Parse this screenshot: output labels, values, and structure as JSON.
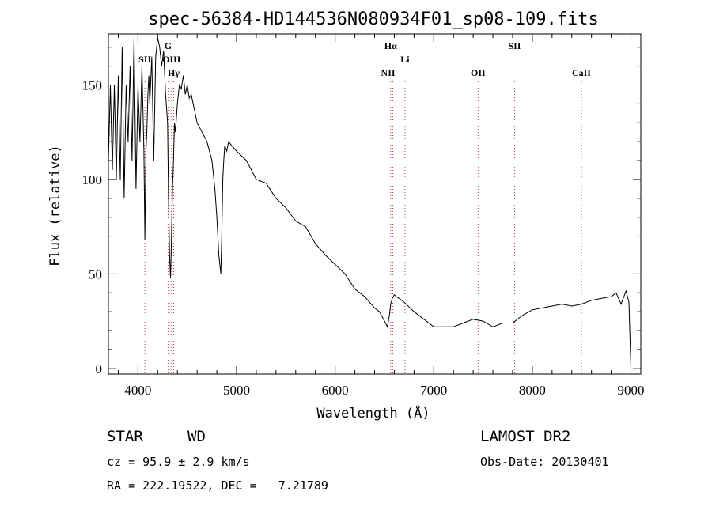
{
  "chart_data": {
    "type": "line",
    "title": "spec-56384-HD144536N080934F01_sp08-109.fits",
    "xlabel": "Wavelength (Å)",
    "ylabel": "Flux (relative)",
    "xlim": [
      3700,
      9100
    ],
    "ylim": [
      -3,
      177
    ],
    "xticks": [
      4000,
      5000,
      6000,
      7000,
      8000,
      9000
    ],
    "yticks": [
      0,
      50,
      100,
      150
    ],
    "grid": false,
    "series": [
      {
        "x": [
          3700,
          3720,
          3740,
          3760,
          3780,
          3800,
          3820,
          3840,
          3860,
          3880,
          3900,
          3920,
          3940,
          3960,
          3980,
          4000,
          4020,
          4040,
          4060,
          4070,
          4080,
          4090,
          4100,
          4110,
          4120,
          4140,
          4160,
          4180,
          4200,
          4220,
          4240,
          4260,
          4280,
          4300,
          4310,
          4320,
          4330,
          4340,
          4350,
          4360,
          4370,
          4380,
          4400,
          4420,
          4440,
          4460,
          4480,
          4500,
          4520,
          4540,
          4560,
          4580,
          4600,
          4650,
          4700,
          4750,
          4780,
          4800,
          4820,
          4840,
          4850,
          4860,
          4870,
          4880,
          4900,
          4920,
          4950,
          5000,
          5100,
          5200,
          5300,
          5400,
          5500,
          5600,
          5700,
          5800,
          5900,
          6000,
          6100,
          6200,
          6300,
          6400,
          6450,
          6500,
          6530,
          6550,
          6563,
          6580,
          6600,
          6620,
          6650,
          6700,
          6800,
          6900,
          7000,
          7100,
          7200,
          7300,
          7400,
          7500,
          7600,
          7700,
          7800,
          7900,
          8000,
          8100,
          8200,
          8300,
          8400,
          8500,
          8600,
          8700,
          8800,
          8850,
          8900,
          8950,
          8980,
          9000
        ],
        "y": [
          110,
          150,
          105,
          150,
          100,
          155,
          100,
          170,
          90,
          150,
          120,
          160,
          110,
          175,
          95,
          150,
          120,
          160,
          115,
          68,
          115,
          125,
          145,
          155,
          140,
          165,
          110,
          165,
          175,
          170,
          160,
          168,
          145,
          130,
          90,
          60,
          48,
          70,
          95,
          110,
          130,
          125,
          140,
          150,
          148,
          155,
          145,
          150,
          143,
          145,
          140,
          135,
          130,
          125,
          120,
          110,
          95,
          80,
          60,
          50,
          70,
          100,
          110,
          118,
          115,
          120,
          118,
          115,
          110,
          100,
          98,
          90,
          85,
          78,
          75,
          66,
          60,
          55,
          50,
          42,
          38,
          32,
          30,
          25,
          22,
          28,
          34,
          37,
          39,
          38,
          37,
          35,
          30,
          26,
          22,
          22,
          22,
          24,
          26,
          25,
          22,
          24,
          24,
          28,
          31,
          32,
          33,
          34,
          33,
          34,
          36,
          37,
          38,
          40,
          34,
          41,
          35,
          0
        ]
      }
    ],
    "emission_lines": [
      {
        "name": "SII",
        "x": 4070
      },
      {
        "name": "G",
        "x": 4305
      },
      {
        "name": "OIII",
        "x": 4340
      },
      {
        "name": "Hγ",
        "x": 4362
      },
      {
        "name": "Hα",
        "x": 6563
      },
      {
        "name": "NII",
        "x": 6585
      },
      {
        "name": "Li",
        "x": 6708
      },
      {
        "name": "OII",
        "x": 7450
      },
      {
        "name": "SII",
        "x": 7820
      },
      {
        "name": "CaII",
        "x": 8498
      }
    ]
  },
  "info": {
    "class_label": "STAR",
    "subclass": "WD",
    "survey": "LAMOST DR2",
    "cz": "cz = 95.9 ± 2.9 km/s",
    "obs_date": "Obs-Date: 20130401",
    "radec": "RA = 222.19522, DEC =   7.21789"
  }
}
